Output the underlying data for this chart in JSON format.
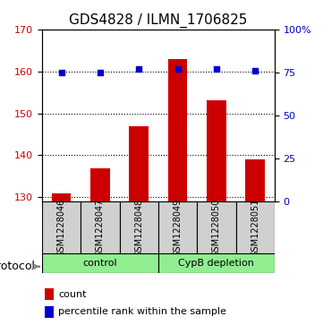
{
  "title": "GDS4828 / ILMN_1706825",
  "samples": [
    "GSM1228046",
    "GSM1228047",
    "GSM1228048",
    "GSM1228049",
    "GSM1228050",
    "GSM1228051"
  ],
  "counts": [
    131,
    137,
    147,
    163,
    153,
    139
  ],
  "percentile_ranks": [
    75,
    75,
    77,
    77,
    77,
    76
  ],
  "groups": [
    {
      "label": "control",
      "samples": [
        0,
        1,
        2
      ]
    },
    {
      "label": "CypB depletion",
      "samples": [
        3,
        4,
        5
      ]
    }
  ],
  "ylim_left": [
    129,
    170
  ],
  "ylim_right": [
    0,
    100
  ],
  "yticks_left": [
    130,
    140,
    150,
    160,
    170
  ],
  "yticks_right": [
    0,
    25,
    50,
    75,
    100
  ],
  "ytick_labels_right": [
    "0",
    "25",
    "50",
    "75",
    "100%"
  ],
  "bar_color": "#cc0000",
  "dot_color": "#0000cc",
  "bar_width": 0.5,
  "group_colors": [
    "#90ee90",
    "#90ee90"
  ],
  "sample_box_color": "#d0d0d0",
  "bg_color": "#ffffff",
  "grid_color": "#000000",
  "legend_count_label": "count",
  "legend_pct_label": "percentile rank within the sample",
  "protocol_label": "protocol",
  "title_fontsize": 11,
  "axis_fontsize": 9,
  "tick_fontsize": 8,
  "sample_fontsize": 7
}
